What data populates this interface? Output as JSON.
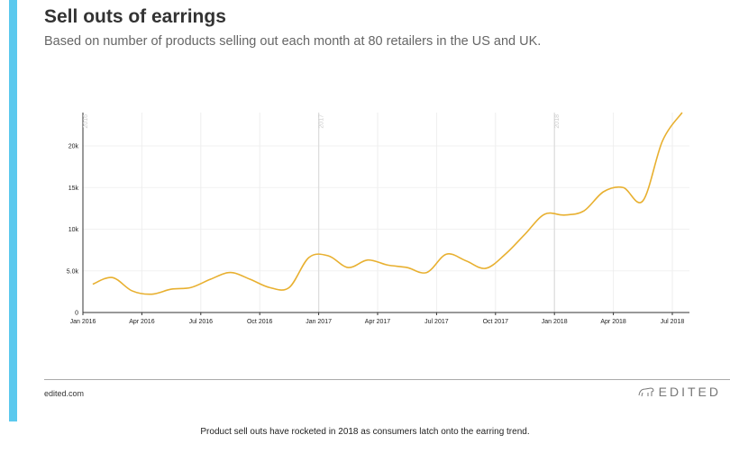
{
  "header": {
    "title": "Sell outs of earrings",
    "subtitle": "Based on number of products selling out each month at 80 retailers in the US and UK."
  },
  "footer": {
    "site": "edited.com",
    "logo": "EDITED",
    "caption": "Product sell outs have rocketed in 2018 as consumers latch onto the earring trend."
  },
  "colors": {
    "accent_bar": "#5bc9ee",
    "line": "#e8b030"
  },
  "chart_data": {
    "type": "line",
    "title": "Sell outs of earrings",
    "xlabel": "",
    "ylabel": "",
    "ylim": [
      0,
      24000
    ],
    "grid": true,
    "x_ticks": [
      "Jan 2016",
      "Apr 2016",
      "Jul 2016",
      "Oct 2016",
      "Jan 2017",
      "Apr 2017",
      "Jul 2017",
      "Oct 2017",
      "Jan 2018",
      "Apr 2018",
      "Jul 2018"
    ],
    "y_ticks": [
      "0",
      "5.0k",
      "10k",
      "15k",
      "20k"
    ],
    "y_tick_values": [
      0,
      5000,
      10000,
      15000,
      20000
    ],
    "year_markers": [
      "2016",
      "2017",
      "2018"
    ],
    "x": [
      "2016-01",
      "2016-02",
      "2016-03",
      "2016-04",
      "2016-05",
      "2016-06",
      "2016-07",
      "2016-08",
      "2016-09",
      "2016-10",
      "2016-11",
      "2016-12",
      "2017-01",
      "2017-02",
      "2017-03",
      "2017-04",
      "2017-05",
      "2017-06",
      "2017-07",
      "2017-08",
      "2017-09",
      "2017-10",
      "2017-11",
      "2017-12",
      "2018-01",
      "2018-02",
      "2018-03",
      "2018-04",
      "2018-05",
      "2018-06",
      "2018-07"
    ],
    "values": [
      3400,
      4200,
      2600,
      2200,
      2800,
      3000,
      4000,
      4800,
      4000,
      3000,
      3000,
      6600,
      6800,
      5400,
      6300,
      5700,
      5400,
      4800,
      7000,
      6200,
      5300,
      7000,
      9400,
      11800,
      11700,
      12200,
      14500,
      15000,
      13400,
      20600,
      24000
    ]
  }
}
